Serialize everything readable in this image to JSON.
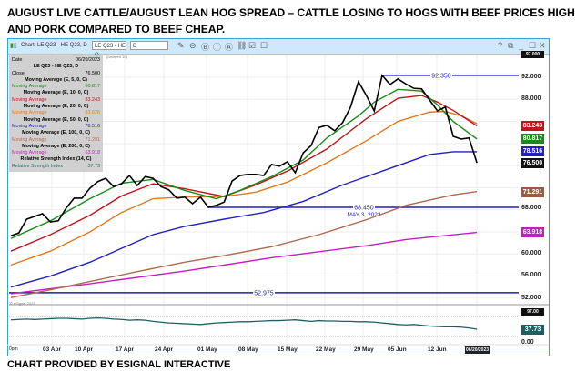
{
  "heading": {
    "line1": "AUGUST LIVE CATTLE/AUGUST LEAN HOG SPREAD – CATTLE LOSING TO HOGS WITH BEEF PRICES HIGH",
    "line2": "AND PORK COMPARED TO BEEF CHEAP."
  },
  "caption": "CHART PROVIDED BY ESIGNAL INTERACTIVE",
  "window": {
    "title": "Chart: LE Q23 - HE Q23, D",
    "symbol_field": "LE Q23 - HE Q",
    "interval_field": "D",
    "controls": [
      "?",
      "⧉",
      "_",
      "☐",
      "✕"
    ],
    "tools": [
      "✎",
      "⊝",
      "Ⓑ",
      "Ⓣ",
      "Ⓐ",
      "⛓",
      "☑",
      "☐"
    ],
    "watermark": "© eSignal 2023",
    "delayed_note": "(Delayed 10)"
  },
  "legend": {
    "date_label": "Date",
    "date": "06/20/2023",
    "symbol": "LE Q23 - HE Q23, D",
    "close_label": "Close",
    "close": "76.500",
    "studies": [
      {
        "header": "Moving Average (E, 5, 0, C)",
        "label": "Moving Average",
        "value": "80.817",
        "color": "#1a8a1a"
      },
      {
        "header": "Moving Average (E, 10, 0, C)",
        "label": "Moving Average",
        "value": "83.243",
        "color": "#c0161b"
      },
      {
        "header": "Moving Average (E, 20, 0, C)",
        "label": "Moving Average",
        "value": "83.626",
        "color": "#e07a20"
      },
      {
        "header": "Moving Average (E, 50, 0, C)",
        "label": "Moving Average",
        "value": "78.516",
        "color": "#2222bb"
      },
      {
        "header": "Moving Average (E, 100, 0, C)",
        "label": "Moving Average",
        "value": "71.291",
        "color": "#b06a50"
      },
      {
        "header": "Moving Average (E, 200, 0, C)",
        "label": "Moving Average",
        "value": "63.918",
        "color": "#c020c0"
      },
      {
        "header": "Relative Strength Index (14, C)",
        "label": "Relative Strength Index",
        "value": "37.73",
        "color": "#2a6b6b"
      }
    ]
  },
  "axis": {
    "price_ticks": [
      "92.000",
      "88.000",
      "68.000",
      "60.000",
      "56.000",
      "52.000"
    ],
    "top_tag": "97.000",
    "rsi_top": "97.00",
    "rsi_bottom": "0.00",
    "rsi_value": "37.73",
    "dates": [
      "03 Apr",
      "10 Apr",
      "17 Apr",
      "24 Apr",
      "01 May",
      "08 May",
      "15 May",
      "22 May",
      "29 May",
      "05 Jun",
      "12 Jun"
    ],
    "current_date": "06/20/2023",
    "left_stub": "0pm"
  },
  "annotations": {
    "high": "92.350",
    "low": "68.450",
    "low_date": "MAY 3, 2023",
    "base": "52.975"
  },
  "chart_data": {
    "type": "line",
    "title": "LE Q23 - HE Q23, D",
    "ylim": [
      50,
      97
    ],
    "close": [
      63.3,
      63.8,
      66.3,
      66.8,
      67.3,
      65.8,
      66.0,
      68.3,
      70.1,
      70.1,
      71.9,
      73.1,
      73.7,
      72.2,
      72.7,
      74.2,
      72.4,
      74.0,
      73.7,
      72.2,
      71.6,
      70.1,
      70.3,
      69.1,
      70.3,
      68.45,
      68.8,
      69.4,
      73.2,
      74.2,
      74.4,
      74.4,
      74.2,
      76.2,
      75.9,
      76.7,
      74.7,
      78.3,
      79.6,
      82.9,
      83.3,
      82.3,
      83.8,
      86.6,
      91.2,
      88.7,
      85.9,
      92.35,
      90.7,
      91.7,
      90.8,
      90.0,
      89.9,
      87.9,
      85.9,
      86.6,
      81.3,
      80.8,
      81.0,
      76.5
    ],
    "ma": [
      {
        "name": "EMA5",
        "color": "#1a8a1a",
        "points": [
          [
            0,
            62.8
          ],
          [
            5,
            66
          ],
          [
            10,
            70
          ],
          [
            14,
            72.8
          ],
          [
            18,
            73.5
          ],
          [
            22,
            71.5
          ],
          [
            26,
            70
          ],
          [
            29,
            71.5
          ],
          [
            33,
            74
          ],
          [
            37,
            77
          ],
          [
            40,
            81
          ],
          [
            44,
            85
          ],
          [
            46,
            87.5
          ],
          [
            49,
            89.8
          ],
          [
            52,
            89.5
          ],
          [
            54,
            87
          ],
          [
            56,
            84
          ],
          [
            59,
            80.8
          ]
        ]
      },
      {
        "name": "EMA10",
        "color": "#c0161b",
        "points": [
          [
            0,
            60.5
          ],
          [
            5,
            63.5
          ],
          [
            10,
            67
          ],
          [
            14,
            70.5
          ],
          [
            18,
            72.7
          ],
          [
            22,
            71.8
          ],
          [
            27,
            70.4
          ],
          [
            31,
            72.5
          ],
          [
            35,
            75
          ],
          [
            40,
            79
          ],
          [
            45,
            84.5
          ],
          [
            49,
            88.2
          ],
          [
            52,
            88.7
          ],
          [
            54,
            87.5
          ],
          [
            56,
            86
          ],
          [
            59,
            83.2
          ]
        ]
      },
      {
        "name": "EMA20",
        "color": "#e07a20",
        "points": [
          [
            0,
            58
          ],
          [
            5,
            60.5
          ],
          [
            10,
            64
          ],
          [
            14,
            67.5
          ],
          [
            18,
            70
          ],
          [
            22,
            70.3
          ],
          [
            27,
            70.4
          ],
          [
            31,
            71.2
          ],
          [
            35,
            73
          ],
          [
            40,
            76.5
          ],
          [
            45,
            80.5
          ],
          [
            49,
            84
          ],
          [
            53,
            85.7
          ],
          [
            55,
            85.8
          ],
          [
            57,
            85
          ],
          [
            59,
            83.6
          ]
        ]
      },
      {
        "name": "EMA50",
        "color": "#2222bb",
        "points": [
          [
            0,
            54
          ],
          [
            5,
            56
          ],
          [
            10,
            58.5
          ],
          [
            14,
            61
          ],
          [
            18,
            63.5
          ],
          [
            22,
            65
          ],
          [
            27,
            66.3
          ],
          [
            32,
            67.5
          ],
          [
            37,
            69.5
          ],
          [
            42,
            72.5
          ],
          [
            48,
            75.5
          ],
          [
            53,
            78
          ],
          [
            56,
            78.5
          ],
          [
            59,
            78.5
          ]
        ]
      },
      {
        "name": "EMA100",
        "color": "#b06a50",
        "points": [
          [
            0,
            52.1
          ],
          [
            5,
            53.5
          ],
          [
            10,
            55
          ],
          [
            16,
            56.8
          ],
          [
            22,
            58.5
          ],
          [
            27,
            59.7
          ],
          [
            33,
            61.3
          ],
          [
            39,
            63.5
          ],
          [
            45,
            66.2
          ],
          [
            50,
            68.8
          ],
          [
            56,
            70.7
          ],
          [
            59,
            71.3
          ]
        ]
      },
      {
        "name": "EMA200",
        "color": "#c020c0",
        "points": [
          [
            0,
            52.8
          ],
          [
            10,
            54.6
          ],
          [
            22,
            56.9
          ],
          [
            33,
            59.3
          ],
          [
            45,
            61.5
          ],
          [
            50,
            62.6
          ],
          [
            59,
            63.9
          ]
        ]
      }
    ],
    "rsi": [
      62,
      63,
      64,
      63,
      64,
      65,
      66,
      66,
      65,
      64,
      66,
      67,
      66,
      64,
      63,
      61,
      62,
      61,
      58,
      56,
      54,
      53,
      52,
      51,
      50,
      52,
      54,
      55,
      56,
      57,
      57,
      58,
      59,
      60,
      60,
      61,
      62,
      60,
      58,
      60,
      59,
      59,
      58,
      58,
      57,
      57,
      56,
      54,
      52,
      50,
      49,
      50,
      48,
      46,
      45,
      44,
      44,
      43,
      41,
      37.73
    ],
    "levels": {
      "high": 92.35,
      "high_from_bar": 47,
      "low": 68.45,
      "low_from_bar": 25,
      "base": 52.975
    }
  }
}
